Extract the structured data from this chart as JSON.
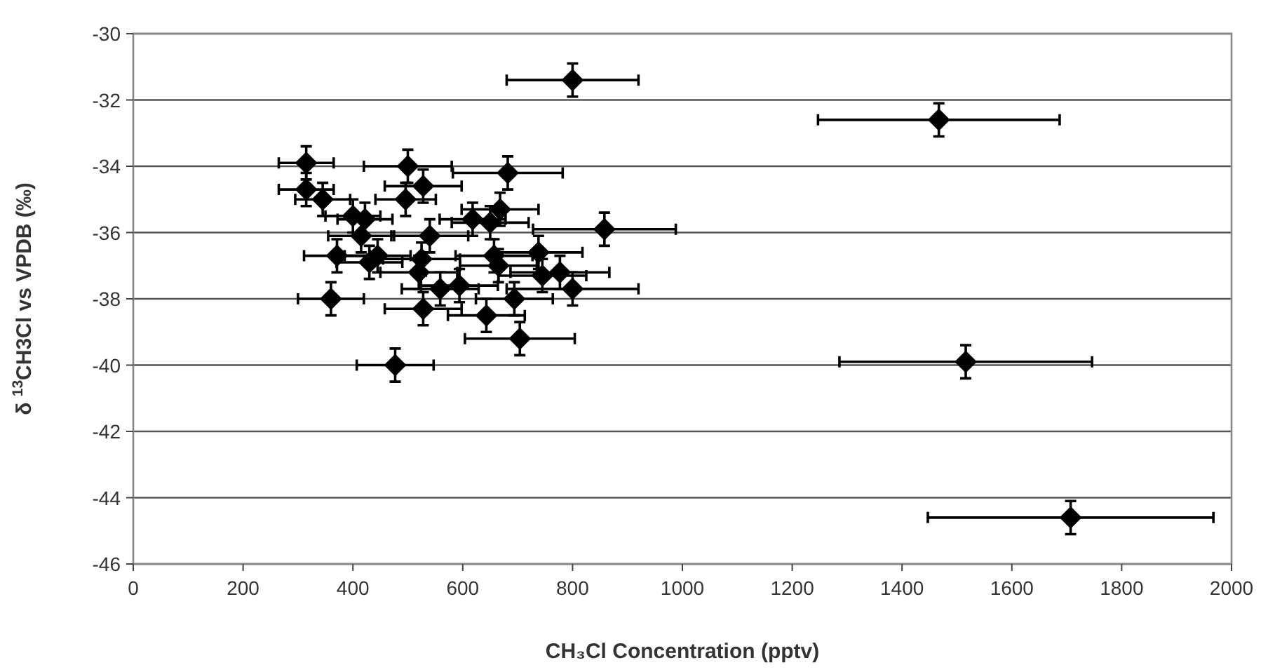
{
  "chart_data": {
    "type": "scatter",
    "xlabel": "CH₃Cl Concentration (pptv)",
    "ylabel": "δ $^{13}$CH3Cl vs VPDB (‰)",
    "xlim": [
      0,
      2000
    ],
    "xticks": [
      0,
      200,
      400,
      600,
      800,
      1000,
      1200,
      1400,
      1600,
      1800,
      2000
    ],
    "ylim": [
      -46,
      -30
    ],
    "yticks": [
      -46,
      -44,
      -42,
      -40,
      -38,
      -36,
      -34,
      -32,
      -30
    ],
    "grid": "y",
    "marker": "diamond",
    "series": [
      {
        "color": "#000000",
        "x": [
          800,
          1467,
          315,
          500,
          682,
          315,
          528,
          345,
          496,
          668,
          400,
          422,
          618,
          650,
          415,
          540,
          858,
          371,
          445,
          525,
          657,
          738,
          430,
          520,
          665,
          745,
          777,
          559,
          594,
          800,
          360,
          694,
          528,
          643,
          704,
          477,
          1516,
          1707
        ],
        "values": [
          -31.4,
          -32.6,
          -33.9,
          -34.0,
          -34.2,
          -34.7,
          -34.6,
          -35.0,
          -35.0,
          -35.3,
          -35.5,
          -35.6,
          -35.6,
          -35.7,
          -36.1,
          -36.1,
          -35.9,
          -36.7,
          -36.7,
          -36.8,
          -36.7,
          -36.6,
          -36.9,
          -37.2,
          -37.0,
          -37.3,
          -37.2,
          -37.7,
          -37.6,
          -37.7,
          -38.0,
          -38.0,
          -38.3,
          -38.5,
          -39.2,
          -40.0,
          -39.9,
          -44.6
        ],
        "xerrors": [
          120,
          220,
          50,
          80,
          100,
          50,
          70,
          50,
          55,
          70,
          50,
          50,
          60,
          70,
          60,
          70,
          130,
          60,
          60,
          70,
          70,
          80,
          60,
          70,
          70,
          80,
          90,
          70,
          70,
          120,
          60,
          70,
          70,
          70,
          100,
          70,
          230,
          260
        ],
        "errors": [
          0.5,
          0.5,
          0.5,
          0.5,
          0.5,
          0.5,
          0.5,
          0.5,
          0.5,
          0.5,
          0.5,
          0.5,
          0.5,
          0.5,
          0.5,
          0.5,
          0.5,
          0.5,
          0.5,
          0.5,
          0.5,
          0.5,
          0.5,
          0.5,
          0.5,
          0.5,
          0.5,
          0.5,
          0.5,
          0.5,
          0.5,
          0.5,
          0.5,
          0.5,
          0.5,
          0.5,
          0.5,
          0.5
        ]
      }
    ]
  }
}
